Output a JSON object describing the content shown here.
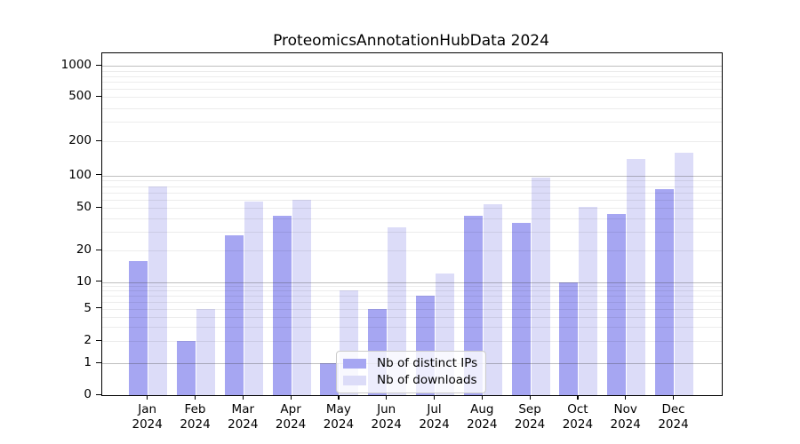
{
  "figure": {
    "title": "ProteomicsAnnotationHubData 2024"
  },
  "chart_data": {
    "type": "bar",
    "title": "ProteomicsAnnotationHubData 2024",
    "categories": [
      "Jan 2024",
      "Feb 2024",
      "Mar 2024",
      "Apr 2024",
      "May 2024",
      "Jun 2024",
      "Jul 2024",
      "Aug 2024",
      "Sep 2024",
      "Oct 2024",
      "Nov 2024",
      "Dec 2024"
    ],
    "series": [
      {
        "name": "Nb of distinct IPs",
        "color": "#a6a6f2",
        "values": [
          16,
          2,
          28,
          42,
          1,
          5,
          7,
          42,
          36,
          10,
          44,
          75
        ]
      },
      {
        "name": "Nb of downloads",
        "color": "#dcdcf8",
        "values": [
          80,
          5,
          57,
          60,
          8,
          33,
          12,
          54,
          95,
          51,
          140,
          160
        ]
      }
    ],
    "xlabel": "",
    "ylabel": "",
    "yscale": "symlog",
    "yticks": [
      0,
      1,
      2,
      5,
      10,
      20,
      50,
      100,
      200,
      500,
      1000
    ],
    "ylim": [
      0,
      1250
    ],
    "grid": true,
    "grid_major_at": [
      1,
      10,
      100,
      1000
    ],
    "legend_position": "lower center"
  },
  "legend": {
    "items": [
      {
        "label": "Nb of distinct IPs",
        "color": "#a6a6f2"
      },
      {
        "label": "Nb of downloads",
        "color": "#dcdcf8"
      }
    ]
  }
}
